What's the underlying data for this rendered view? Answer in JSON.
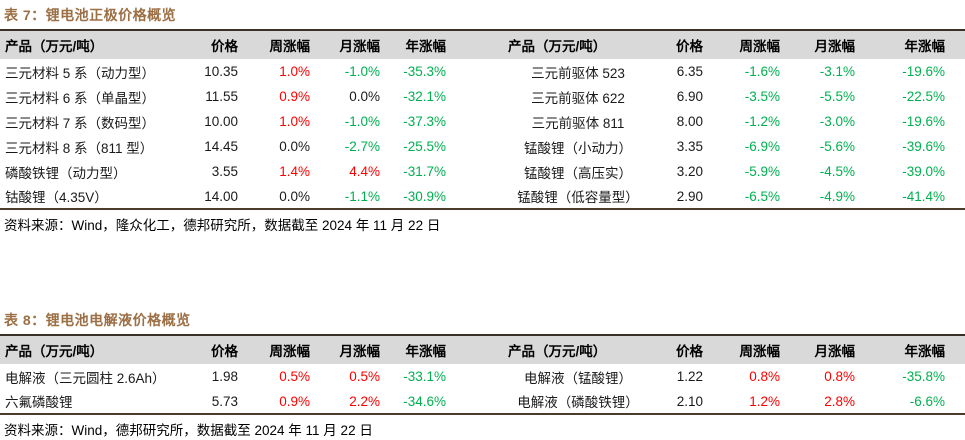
{
  "colors": {
    "title": "#9C6F45",
    "up_red": "#FF0000",
    "down_green": "#00B050",
    "header_bg": "#D9D9D9",
    "border_top": "#3A3028",
    "border_bottom": "#4A3B2B"
  },
  "header_labels": {
    "product": "产品（万元/吨）",
    "price": "价格",
    "week": "周涨幅",
    "month": "月涨幅",
    "year": "年涨幅"
  },
  "table7": {
    "title": "表 7：锂电池正极价格概览",
    "source": "资料来源：Wind，隆众化工，德邦研究所，数据截至 2024 年 11 月 22 日",
    "rows": [
      {
        "l_name": "三元材料 5 系（动力型）",
        "l_price": "10.35",
        "l_week": "1.0%",
        "l_week_c": "up",
        "l_month": "-1.0%",
        "l_month_c": "down",
        "l_year": "-35.3%",
        "l_year_c": "down",
        "r_name": "三元前驱体 523",
        "r_price": "6.35",
        "r_week": "-1.6%",
        "r_week_c": "down",
        "r_month": "-3.1%",
        "r_month_c": "down",
        "r_year": "-19.6%",
        "r_year_c": "down"
      },
      {
        "l_name": "三元材料 6 系（单晶型）",
        "l_price": "11.55",
        "l_week": "0.9%",
        "l_week_c": "up",
        "l_month": "0.0%",
        "l_month_c": "flat",
        "l_year": "-32.1%",
        "l_year_c": "down",
        "r_name": "三元前驱体 622",
        "r_price": "6.90",
        "r_week": "-3.5%",
        "r_week_c": "down",
        "r_month": "-5.5%",
        "r_month_c": "down",
        "r_year": "-22.5%",
        "r_year_c": "down"
      },
      {
        "l_name": "三元材料 7 系（数码型）",
        "l_price": "10.00",
        "l_week": "1.0%",
        "l_week_c": "up",
        "l_month": "-1.0%",
        "l_month_c": "down",
        "l_year": "-37.3%",
        "l_year_c": "down",
        "r_name": "三元前驱体 811",
        "r_price": "8.00",
        "r_week": "-1.2%",
        "r_week_c": "down",
        "r_month": "-3.0%",
        "r_month_c": "down",
        "r_year": "-19.6%",
        "r_year_c": "down"
      },
      {
        "l_name": "三元材料 8 系（811 型）",
        "l_price": "14.45",
        "l_week": "0.0%",
        "l_week_c": "flat",
        "l_month": "-2.7%",
        "l_month_c": "down",
        "l_year": "-25.5%",
        "l_year_c": "down",
        "r_name": "锰酸锂（小动力）",
        "r_price": "3.35",
        "r_week": "-6.9%",
        "r_week_c": "down",
        "r_month": "-5.6%",
        "r_month_c": "down",
        "r_year": "-39.6%",
        "r_year_c": "down"
      },
      {
        "l_name": "磷酸铁锂（动力型）",
        "l_price": "3.55",
        "l_week": "1.4%",
        "l_week_c": "up",
        "l_month": "4.4%",
        "l_month_c": "up",
        "l_year": "-31.7%",
        "l_year_c": "down",
        "r_name": "锰酸锂（高压实）",
        "r_price": "3.20",
        "r_week": "-5.9%",
        "r_week_c": "down",
        "r_month": "-4.5%",
        "r_month_c": "down",
        "r_year": "-39.0%",
        "r_year_c": "down"
      },
      {
        "l_name": "钴酸锂（4.35V）",
        "l_price": "14.00",
        "l_week": "0.0%",
        "l_week_c": "flat",
        "l_month": "-1.1%",
        "l_month_c": "down",
        "l_year": "-30.9%",
        "l_year_c": "down",
        "r_name": "锰酸锂（低容量型）",
        "r_price": "2.90",
        "r_week": "-6.5%",
        "r_week_c": "down",
        "r_month": "-4.9%",
        "r_month_c": "down",
        "r_year": "-41.4%",
        "r_year_c": "down"
      }
    ]
  },
  "table8": {
    "title": "表 8：锂电池电解液价格概览",
    "source": "资料来源：Wind，德邦研究所，数据截至 2024 年 11 月 22 日",
    "rows": [
      {
        "l_name": "电解液（三元圆柱 2.6Ah）",
        "l_price": "1.98",
        "l_week": "0.5%",
        "l_week_c": "up",
        "l_month": "0.5%",
        "l_month_c": "up",
        "l_year": "-33.1%",
        "l_year_c": "down",
        "r_name": "电解液（锰酸锂）",
        "r_price": "1.22",
        "r_week": "0.8%",
        "r_week_c": "up",
        "r_month": "0.8%",
        "r_month_c": "up",
        "r_year": "-35.8%",
        "r_year_c": "down"
      },
      {
        "l_name": "六氟磷酸锂",
        "l_price": "5.73",
        "l_week": "0.9%",
        "l_week_c": "up",
        "l_month": "2.2%",
        "l_month_c": "up",
        "l_year": "-34.6%",
        "l_year_c": "down",
        "r_name": "电解液（磷酸铁锂）",
        "r_price": "2.10",
        "r_week": "1.2%",
        "r_week_c": "up",
        "r_month": "2.8%",
        "r_month_c": "up",
        "r_year": "-6.6%",
        "r_year_c": "down"
      }
    ]
  }
}
